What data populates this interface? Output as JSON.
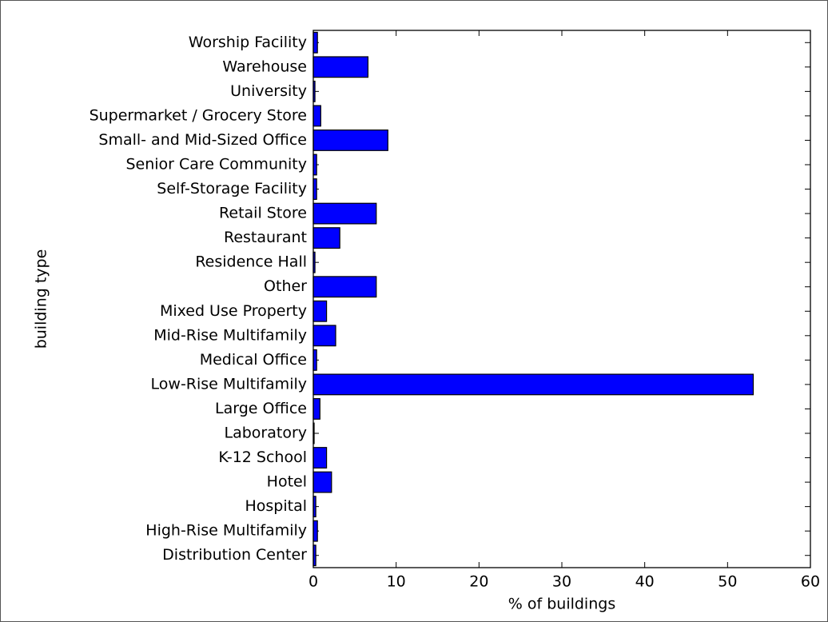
{
  "chart_data": {
    "type": "barh",
    "xlabel": "% of buildings",
    "ylabel": "building type",
    "categories": [
      "Distribution Center",
      "High-Rise Multifamily",
      "Hospital",
      "Hotel",
      "K-12 School",
      "Laboratory",
      "Large Office",
      "Low-Rise Multifamily",
      "Medical Office",
      "Mid-Rise Multifamily",
      "Mixed Use Property",
      "Other",
      "Residence Hall",
      "Restaurant",
      "Retail Store",
      "Self-Storage Facility",
      "Senior Care Community",
      "Small- and Mid-Sized Office",
      "Supermarket / Grocery Store",
      "University",
      "Warehouse",
      "Worship Facility"
    ],
    "values": [
      0.3,
      0.5,
      0.3,
      2.2,
      1.6,
      0.1,
      0.8,
      53.1,
      0.4,
      2.7,
      1.6,
      7.6,
      0.2,
      3.2,
      7.6,
      0.4,
      0.4,
      9.0,
      0.9,
      0.2,
      6.6,
      0.5
    ],
    "color": "#0000ff",
    "xlim": [
      0,
      60
    ],
    "xticks": [
      0,
      10,
      20,
      30,
      40,
      50,
      60
    ]
  }
}
